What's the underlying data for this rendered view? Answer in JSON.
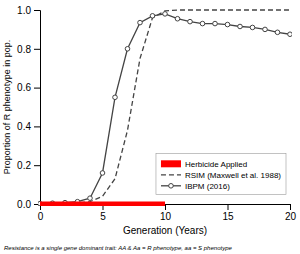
{
  "chart_data": {
    "type": "line",
    "xlabel": "Generation (Years)",
    "ylabel": "Proportion of R phenotype in pop.",
    "annotations": [
      "Resistance is a single gene dominant trait: AA & Aa = R phenotype, aa = S phenotype"
    ],
    "x": [
      0,
      1,
      2,
      3,
      4,
      5,
      6,
      7,
      8,
      9,
      10,
      11,
      12,
      13,
      14,
      15,
      16,
      17,
      18,
      19,
      20
    ],
    "xlim": [
      0,
      20
    ],
    "ylim": [
      0.0,
      1.0
    ],
    "xticks": [
      0,
      5,
      10,
      15,
      20
    ],
    "yticks": [
      {
        "value": 0.0,
        "label": "0.0"
      },
      0.2,
      0.4,
      0.6,
      0.8,
      {
        "value": 1.0,
        "label": "1.0"
      }
    ],
    "grid": false,
    "legend": "lower right",
    "series": [
      {
        "name": "Herbicide Applied",
        "type": "span",
        "color": "#FF0000",
        "x": [
          0,
          10
        ],
        "values": [
          0.0,
          0.0
        ]
      },
      {
        "name": "RSIM (Maxwell et al. 1988)",
        "type": "line",
        "color": "#444444",
        "line_style": "dashed",
        "marker": "none",
        "values": [
          0.001,
          0.001,
          0.002,
          0.005,
          0.012,
          0.04,
          0.13,
          0.38,
          0.75,
          0.96,
          0.995,
          1.0,
          1.0,
          1.0,
          1.0,
          1.0,
          1.0,
          1.0,
          1.0,
          1.0,
          1.0
        ]
      },
      {
        "name": "IBPM (2016)",
        "type": "line",
        "color": "#444444",
        "line_style": "solid",
        "marker": "circle",
        "values": [
          0.002,
          0.004,
          0.007,
          0.012,
          0.03,
          0.16,
          0.55,
          0.8,
          0.935,
          0.97,
          0.98,
          0.955,
          0.94,
          0.93,
          0.93,
          0.925,
          0.915,
          0.91,
          0.9,
          0.885,
          0.875
        ]
      }
    ]
  }
}
